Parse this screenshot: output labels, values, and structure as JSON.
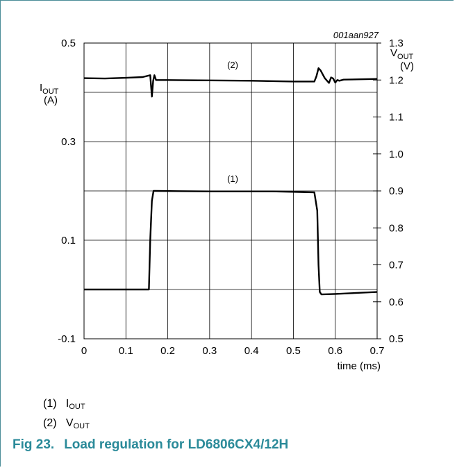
{
  "chart_data": {
    "type": "line",
    "code": "001aan927",
    "xlabel": "time (ms)",
    "x_ticks": [
      "0",
      "0.1",
      "0.2",
      "0.3",
      "0.4",
      "0.5",
      "0.6",
      "0.7"
    ],
    "xlim": [
      0,
      0.7
    ],
    "left_axis": {
      "label_main": "I",
      "label_sub": "OUT",
      "unit": "(A)",
      "ylim": [
        -0.1,
        0.5
      ],
      "ticks": [
        "0.5",
        "0.3",
        "0.1",
        "-0.1"
      ]
    },
    "right_axis": {
      "label_main": "V",
      "label_sub": "OUT",
      "unit": "(V)",
      "ylim": [
        0.5,
        1.3
      ],
      "ticks": [
        "1.3",
        "1.2",
        "1.1",
        "1.0",
        "0.9",
        "0.8",
        "0.7",
        "0.6",
        "0.5"
      ]
    },
    "grid": true,
    "series": [
      {
        "name": "(1)",
        "axis": "left",
        "x": [
          0,
          0.155,
          0.158,
          0.162,
          0.166,
          0.17,
          0.3,
          0.45,
          0.55,
          0.557,
          0.56,
          0.563,
          0.567,
          0.6,
          0.7
        ],
        "y": [
          0.0,
          0.0,
          0.1,
          0.18,
          0.2,
          0.2,
          0.199,
          0.199,
          0.197,
          0.16,
          0.05,
          -0.005,
          -0.01,
          -0.009,
          -0.005
        ]
      },
      {
        "name": "(2)",
        "axis": "right",
        "x": [
          0,
          0.05,
          0.1,
          0.14,
          0.158,
          0.162,
          0.165,
          0.168,
          0.172,
          0.2,
          0.3,
          0.4,
          0.5,
          0.55,
          0.555,
          0.56,
          0.565,
          0.575,
          0.585,
          0.59,
          0.595,
          0.6,
          0.605,
          0.61,
          0.62,
          0.7
        ],
        "y": [
          1.205,
          1.204,
          1.206,
          1.208,
          1.213,
          1.155,
          1.197,
          1.213,
          1.2,
          1.2,
          1.199,
          1.198,
          1.196,
          1.196,
          1.21,
          1.232,
          1.226,
          1.205,
          1.192,
          1.207,
          1.204,
          1.193,
          1.2,
          1.198,
          1.201,
          1.203
        ]
      }
    ],
    "annotations": [
      {
        "text": "(2)",
        "x": 0.355,
        "y_right": 1.232
      },
      {
        "text": "(1)",
        "x": 0.355,
        "y_left": 0.218
      }
    ]
  },
  "legend": [
    {
      "num": "(1)",
      "main": "I",
      "sub": "OUT"
    },
    {
      "num": "(2)",
      "main": "V",
      "sub": "OUT"
    }
  ],
  "figure": {
    "number": "Fig 23.",
    "title": "Load regulation for LD6806CX4/12H"
  }
}
